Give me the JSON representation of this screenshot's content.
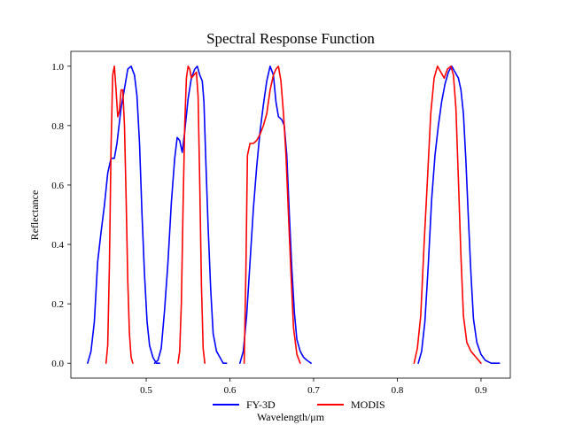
{
  "chart_data": {
    "type": "line",
    "title": "Spectral Response Function",
    "xlabel": "Wavelength/μm",
    "ylabel": "Reflectance",
    "xlim": [
      0.41,
      0.935
    ],
    "ylim": [
      -0.05,
      1.05
    ],
    "x_ticks": [
      0.5,
      0.6,
      0.7,
      0.8,
      0.9
    ],
    "x_tick_labels": [
      "0.5",
      "0.6",
      "0.7",
      "0.8",
      "0.9"
    ],
    "y_ticks": [
      0.0,
      0.2,
      0.4,
      0.6,
      0.8,
      1.0
    ],
    "y_tick_labels": [
      "0.0",
      "0.2",
      "0.4",
      "0.6",
      "0.8",
      "1.0"
    ],
    "grid": false,
    "legend_position": "bottom-center",
    "series": [
      {
        "name": "FY-3D",
        "color": "#0000ff",
        "segments": [
          [
            [
              0.43,
              0.0
            ],
            [
              0.434,
              0.04
            ],
            [
              0.438,
              0.14
            ],
            [
              0.442,
              0.34
            ],
            [
              0.446,
              0.44
            ],
            [
              0.45,
              0.53
            ],
            [
              0.454,
              0.64
            ],
            [
              0.458,
              0.69
            ],
            [
              0.462,
              0.69
            ],
            [
              0.465,
              0.74
            ],
            [
              0.47,
              0.86
            ],
            [
              0.475,
              0.94
            ],
            [
              0.478,
              0.99
            ],
            [
              0.482,
              1.0
            ],
            [
              0.486,
              0.97
            ],
            [
              0.489,
              0.9
            ],
            [
              0.492,
              0.74
            ],
            [
              0.495,
              0.5
            ],
            [
              0.498,
              0.3
            ],
            [
              0.501,
              0.14
            ],
            [
              0.504,
              0.06
            ],
            [
              0.508,
              0.02
            ],
            [
              0.512,
              0.0
            ],
            [
              0.516,
              0.0
            ]
          ],
          [
            [
              0.51,
              0.0
            ],
            [
              0.514,
              0.01
            ],
            [
              0.518,
              0.05
            ],
            [
              0.522,
              0.18
            ],
            [
              0.526,
              0.34
            ],
            [
              0.53,
              0.54
            ],
            [
              0.534,
              0.69
            ],
            [
              0.537,
              0.76
            ],
            [
              0.54,
              0.75
            ],
            [
              0.543,
              0.71
            ],
            [
              0.546,
              0.78
            ],
            [
              0.55,
              0.89
            ],
            [
              0.554,
              0.96
            ],
            [
              0.558,
              0.99
            ],
            [
              0.561,
              1.0
            ],
            [
              0.564,
              0.97
            ],
            [
              0.567,
              0.95
            ],
            [
              0.569,
              0.88
            ],
            [
              0.571,
              0.7
            ],
            [
              0.574,
              0.46
            ],
            [
              0.577,
              0.25
            ],
            [
              0.58,
              0.1
            ],
            [
              0.584,
              0.04
            ],
            [
              0.588,
              0.02
            ],
            [
              0.592,
              0.0
            ],
            [
              0.596,
              0.0
            ]
          ],
          [
            [
              0.612,
              0.0
            ],
            [
              0.616,
              0.04
            ],
            [
              0.62,
              0.16
            ],
            [
              0.624,
              0.34
            ],
            [
              0.628,
              0.52
            ],
            [
              0.632,
              0.66
            ],
            [
              0.636,
              0.78
            ],
            [
              0.64,
              0.87
            ],
            [
              0.644,
              0.95
            ],
            [
              0.648,
              1.0
            ],
            [
              0.652,
              0.97
            ],
            [
              0.655,
              0.88
            ],
            [
              0.658,
              0.83
            ],
            [
              0.662,
              0.82
            ],
            [
              0.665,
              0.8
            ],
            [
              0.668,
              0.7
            ],
            [
              0.671,
              0.5
            ],
            [
              0.674,
              0.32
            ],
            [
              0.677,
              0.17
            ],
            [
              0.68,
              0.08
            ],
            [
              0.684,
              0.04
            ],
            [
              0.688,
              0.02
            ],
            [
              0.692,
              0.01
            ],
            [
              0.697,
              0.0
            ]
          ],
          [
            [
              0.825,
              0.0
            ],
            [
              0.829,
              0.04
            ],
            [
              0.833,
              0.14
            ],
            [
              0.837,
              0.33
            ],
            [
              0.841,
              0.55
            ],
            [
              0.845,
              0.7
            ],
            [
              0.849,
              0.8
            ],
            [
              0.853,
              0.88
            ],
            [
              0.857,
              0.94
            ],
            [
              0.861,
              0.98
            ],
            [
              0.865,
              1.0
            ],
            [
              0.869,
              0.98
            ],
            [
              0.873,
              0.96
            ],
            [
              0.876,
              0.92
            ],
            [
              0.879,
              0.84
            ],
            [
              0.882,
              0.68
            ],
            [
              0.885,
              0.48
            ],
            [
              0.888,
              0.3
            ],
            [
              0.891,
              0.15
            ],
            [
              0.895,
              0.07
            ],
            [
              0.9,
              0.03
            ],
            [
              0.905,
              0.01
            ],
            [
              0.912,
              0.0
            ],
            [
              0.922,
              0.0
            ]
          ]
        ]
      },
      {
        "name": "MODIS",
        "color": "#ff0000",
        "segments": [
          [
            [
              0.452,
              0.0
            ],
            [
              0.454,
              0.06
            ],
            [
              0.456,
              0.33
            ],
            [
              0.458,
              0.72
            ],
            [
              0.46,
              0.97
            ],
            [
              0.462,
              1.0
            ],
            [
              0.464,
              0.92
            ],
            [
              0.466,
              0.83
            ],
            [
              0.468,
              0.85
            ],
            [
              0.47,
              0.92
            ],
            [
              0.472,
              0.92
            ],
            [
              0.474,
              0.8
            ],
            [
              0.476,
              0.55
            ],
            [
              0.478,
              0.28
            ],
            [
              0.48,
              0.1
            ],
            [
              0.482,
              0.02
            ],
            [
              0.484,
              0.0
            ]
          ],
          [
            [
              0.538,
              0.0
            ],
            [
              0.54,
              0.04
            ],
            [
              0.542,
              0.2
            ],
            [
              0.544,
              0.52
            ],
            [
              0.546,
              0.8
            ],
            [
              0.548,
              0.96
            ],
            [
              0.55,
              1.0
            ],
            [
              0.552,
              0.99
            ],
            [
              0.554,
              0.96
            ],
            [
              0.557,
              0.97
            ],
            [
              0.56,
              0.98
            ],
            [
              0.562,
              0.9
            ],
            [
              0.564,
              0.6
            ],
            [
              0.566,
              0.26
            ],
            [
              0.568,
              0.05
            ],
            [
              0.57,
              0.0
            ]
          ],
          [
            [
              0.617,
              0.0
            ],
            [
              0.619,
              0.3
            ],
            [
              0.621,
              0.7
            ],
            [
              0.624,
              0.74
            ],
            [
              0.628,
              0.74
            ],
            [
              0.632,
              0.75
            ],
            [
              0.636,
              0.77
            ],
            [
              0.64,
              0.8
            ],
            [
              0.644,
              0.84
            ],
            [
              0.648,
              0.92
            ],
            [
              0.652,
              0.97
            ],
            [
              0.655,
              0.99
            ],
            [
              0.658,
              1.0
            ],
            [
              0.661,
              0.95
            ],
            [
              0.664,
              0.84
            ],
            [
              0.667,
              0.7
            ],
            [
              0.67,
              0.5
            ],
            [
              0.673,
              0.3
            ],
            [
              0.676,
              0.12
            ],
            [
              0.68,
              0.03
            ],
            [
              0.684,
              0.0
            ]
          ],
          [
            [
              0.82,
              0.0
            ],
            [
              0.824,
              0.05
            ],
            [
              0.828,
              0.16
            ],
            [
              0.832,
              0.4
            ],
            [
              0.836,
              0.62
            ],
            [
              0.84,
              0.84
            ],
            [
              0.844,
              0.96
            ],
            [
              0.848,
              1.0
            ],
            [
              0.852,
              0.98
            ],
            [
              0.856,
              0.96
            ],
            [
              0.86,
              0.99
            ],
            [
              0.864,
              1.0
            ],
            [
              0.867,
              0.97
            ],
            [
              0.87,
              0.86
            ],
            [
              0.873,
              0.62
            ],
            [
              0.876,
              0.36
            ],
            [
              0.879,
              0.16
            ],
            [
              0.883,
              0.07
            ],
            [
              0.888,
              0.04
            ],
            [
              0.894,
              0.02
            ],
            [
              0.9,
              0.0
            ]
          ]
        ]
      }
    ]
  }
}
